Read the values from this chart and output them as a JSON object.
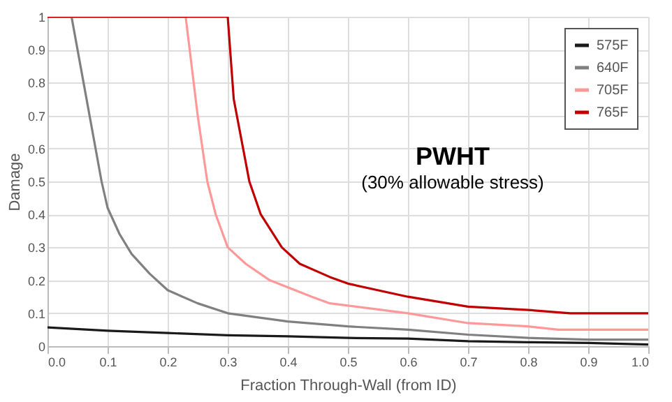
{
  "chart_data": {
    "type": "line",
    "title": "PWHT",
    "subtitle": "(30% allowable stress)",
    "xlabel": "Fraction Through-Wall (from ID)",
    "ylabel": "Damage",
    "series": [
      {
        "name": "575F",
        "color": "#1a1a1a",
        "x": [
          0,
          0.1,
          0.2,
          0.3,
          0.4,
          0.5,
          0.6,
          0.7,
          0.8,
          0.9,
          1.0
        ],
        "values": [
          0.057,
          0.047,
          0.04,
          0.033,
          0.03,
          0.025,
          0.023,
          0.015,
          0.012,
          0.01,
          0.005
        ]
      },
      {
        "name": "640F",
        "color": "#808080",
        "x": [
          0,
          0.04,
          0.06,
          0.08,
          0.09,
          0.1,
          0.12,
          0.14,
          0.17,
          0.2,
          0.25,
          0.3,
          0.4,
          0.5,
          0.6,
          0.7,
          0.8,
          0.9,
          1.0
        ],
        "values": [
          1,
          1,
          0.8,
          0.6,
          0.5,
          0.42,
          0.34,
          0.28,
          0.22,
          0.17,
          0.13,
          0.1,
          0.075,
          0.06,
          0.05,
          0.035,
          0.025,
          0.02,
          0.02
        ]
      },
      {
        "name": "705F",
        "color": "#ff9999",
        "x": [
          0,
          0.23,
          0.25,
          0.266,
          0.28,
          0.3,
          0.33,
          0.37,
          0.44,
          0.47,
          0.6,
          0.7,
          0.8,
          0.85,
          1.0
        ],
        "values": [
          1,
          1,
          0.7,
          0.5,
          0.4,
          0.3,
          0.25,
          0.2,
          0.15,
          0.13,
          0.1,
          0.07,
          0.06,
          0.05,
          0.05
        ]
      },
      {
        "name": "765F",
        "color": "#c00000",
        "x": [
          0,
          0.3,
          0.31,
          0.336,
          0.355,
          0.39,
          0.42,
          0.47,
          0.5,
          0.6,
          0.7,
          0.8,
          0.87,
          1.0
        ],
        "values": [
          1,
          1,
          0.75,
          0.5,
          0.4,
          0.3,
          0.25,
          0.21,
          0.19,
          0.15,
          0.12,
          0.11,
          0.1,
          0.1
        ]
      }
    ],
    "xlim": [
      0,
      1
    ],
    "xticks": [
      {
        "value": 0,
        "label": "0.0"
      },
      0.1,
      0.2,
      0.3,
      0.4,
      0.5,
      0.6,
      0.7,
      0.8,
      0.9,
      {
        "value": 1,
        "label": "1.0"
      }
    ],
    "ylim": [
      0,
      1
    ],
    "yticks": [
      0,
      0.1,
      0.2,
      0.3,
      0.4,
      0.5,
      0.6,
      0.7,
      0.8,
      0.9,
      1
    ],
    "grid": true,
    "legend": "top right",
    "marker": "none",
    "line_style": "solid"
  }
}
